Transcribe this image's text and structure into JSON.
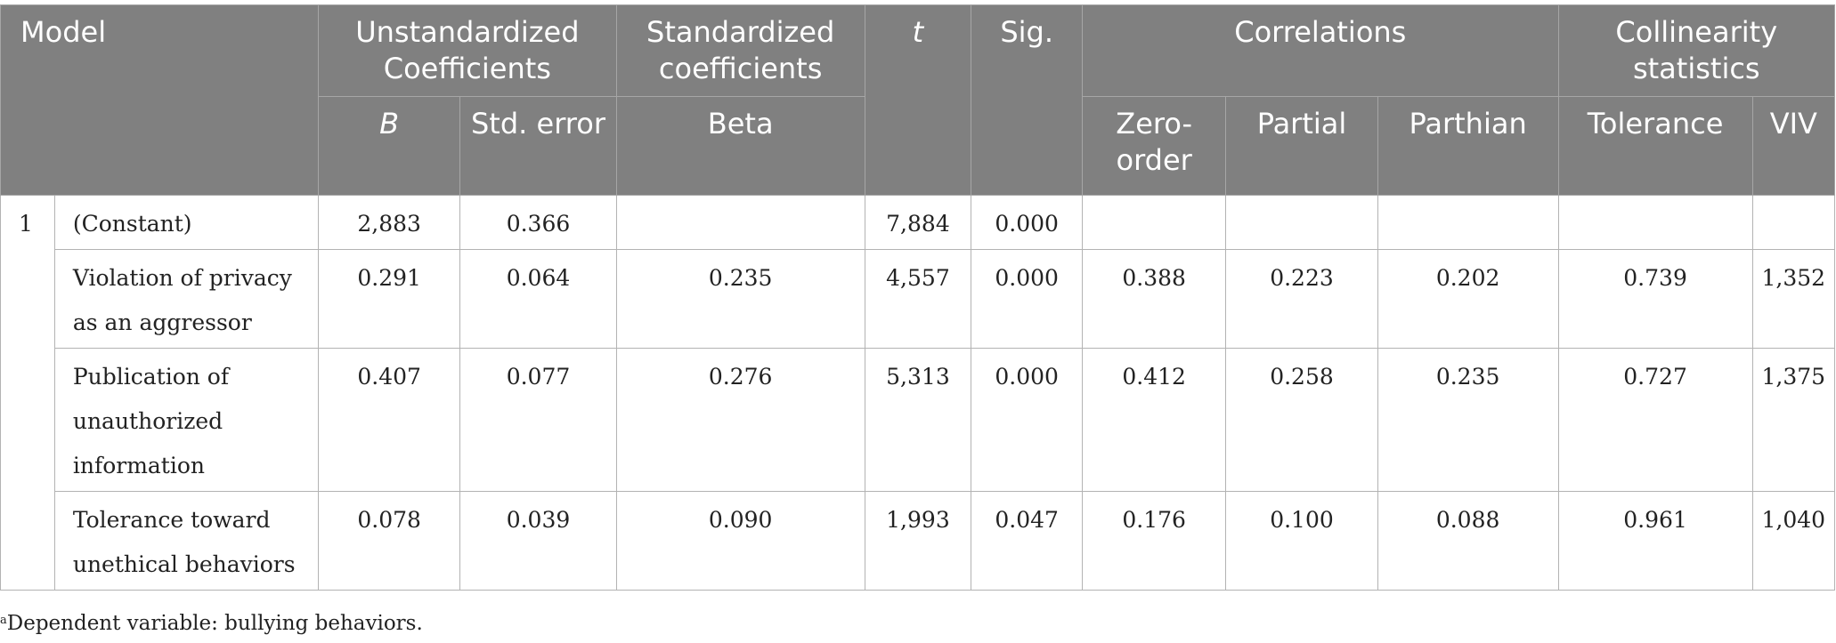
{
  "header": {
    "model": "Model",
    "unstd": "Unstandardized Coefficients",
    "std": "Standardized coefficients",
    "t": "t",
    "sig": "Sig.",
    "corr": "Correlations",
    "coll": "Collinearity statistics",
    "b": "B",
    "std_error": "Std. error",
    "beta": "Beta",
    "zero_order": "Zero-order",
    "partial": "Partial",
    "parthian": "Parthian",
    "tolerance": "Tolerance",
    "viv": "VIV"
  },
  "model_number": "1",
  "rows": [
    {
      "label": "(Constant)",
      "b": "2,883",
      "se": "0.366",
      "beta": "",
      "t": "7,884",
      "sig": "0.000",
      "zero": "",
      "partial": "",
      "part": "",
      "tol": "",
      "viv": ""
    },
    {
      "label": "Violation of privacy as an aggressor",
      "b": "0.291",
      "se": "0.064",
      "beta": "0.235",
      "t": "4,557",
      "sig": "0.000",
      "zero": "0.388",
      "partial": "0.223",
      "part": "0.202",
      "tol": "0.739",
      "viv": "1,352"
    },
    {
      "label": "Publication of unauthorized information",
      "b": "0.407",
      "se": "0.077",
      "beta": "0.276",
      "t": "5,313",
      "sig": "0.000",
      "zero": "0.412",
      "partial": "0.258",
      "part": "0.235",
      "tol": "0.727",
      "viv": "1,375"
    },
    {
      "label": "Tolerance toward unethical behaviors",
      "b": "0.078",
      "se": "0.039",
      "beta": "0.090",
      "t": "1,993",
      "sig": "0.047",
      "zero": "0.176",
      "partial": "0.100",
      "part": "0.088",
      "tol": "0.961",
      "viv": "1,040"
    }
  ],
  "footnote": {
    "mark": "a",
    "text": "Dependent variable: bullying behaviors."
  }
}
